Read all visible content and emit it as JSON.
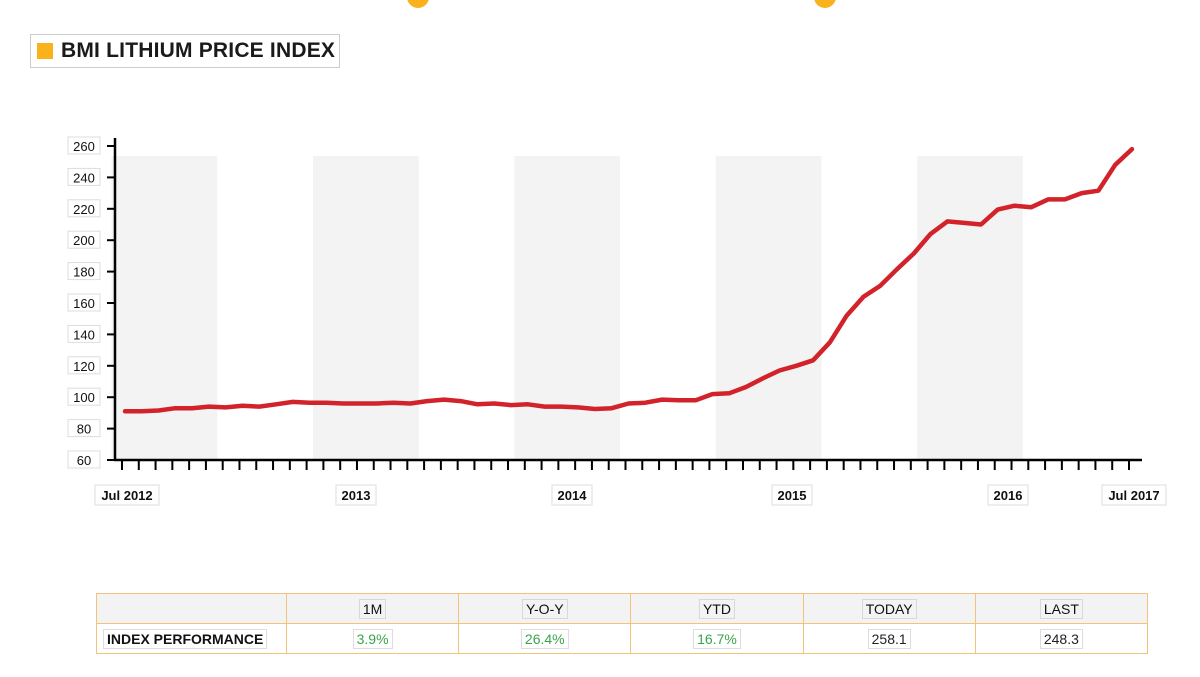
{
  "colors": {
    "accent": "#f9b21b",
    "line": "#d2232a",
    "band": "#f3f3f3",
    "table_border": "#f4c37a",
    "positive": "#3aa34a"
  },
  "title": "BMI LITHIUM PRICE INDEX",
  "chart_data": {
    "type": "line",
    "title": "BMI LITHIUM PRICE INDEX",
    "xlabel": "",
    "ylabel": "",
    "ylim": [
      60,
      260
    ],
    "yticks": [
      60,
      80,
      100,
      120,
      140,
      160,
      180,
      200,
      220,
      240,
      260
    ],
    "x_start": "Jul 2012",
    "x_end": "Jul 2017",
    "x_tick_labels": [
      "Jul 2012",
      "2013",
      "2014",
      "2015",
      "2016",
      "Jul 2017"
    ],
    "grid": false,
    "year_bands": true,
    "series": [
      {
        "values": [
          91,
          91,
          91.5,
          93,
          93,
          94,
          93.5,
          94.5,
          94,
          95.5,
          97,
          96.5,
          96.5,
          96,
          96,
          96,
          96.5,
          96,
          97.5,
          98.5,
          97.5,
          95.5,
          96,
          95,
          95.5,
          94,
          94,
          93.5,
          92.5,
          93,
          96,
          96.5,
          98.5,
          98,
          98,
          102,
          102.5,
          106.5,
          112,
          117,
          120,
          123.5,
          135,
          152,
          164,
          171,
          181.5,
          191.5,
          204,
          212,
          211,
          210,
          219.5,
          222,
          221,
          226,
          226,
          230,
          231.5,
          248,
          258
        ]
      }
    ]
  },
  "table": {
    "headers": [
      "",
      "1M",
      "Y-O-Y",
      "YTD",
      "TODAY",
      "LAST"
    ],
    "row_label": "INDEX PERFORMANCE",
    "values": [
      "3.9%",
      "26.4%",
      "16.7%",
      "258.1",
      "248.3"
    ]
  }
}
